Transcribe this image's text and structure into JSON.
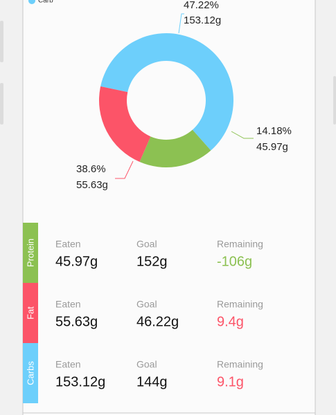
{
  "chart_data": {
    "type": "pie",
    "categories": [
      "Carb",
      null,
      null
    ],
    "values": [
      153.12,
      45.97,
      55.63
    ],
    "value_labels": [
      "153.12g",
      "45.97g",
      "55.63g"
    ],
    "percent_labels": [
      "47.22%",
      "14.18%",
      "38.6%"
    ],
    "colors": [
      "#6dcffb",
      "#8cc152",
      "#fc5468"
    ],
    "donut": true
  },
  "table": {
    "columns": [
      "Eaten",
      "Goal",
      "Remaining"
    ],
    "rows": [
      {
        "name": "Protein",
        "color": "#8cc152",
        "eaten": "45.97g",
        "goal": "152g",
        "remaining": "-106g",
        "remaining_color": "#8cc152"
      },
      {
        "name": "Fat",
        "color": "#fc5468",
        "eaten": "55.63g",
        "goal": "46.22g",
        "remaining": "9.4g",
        "remaining_color": "#fc5468"
      },
      {
        "name": "Carbs",
        "color": "#6dcffb",
        "eaten": "153.12g",
        "goal": "144g",
        "remaining": "9.1g",
        "remaining_color": "#fc5468"
      }
    ]
  }
}
